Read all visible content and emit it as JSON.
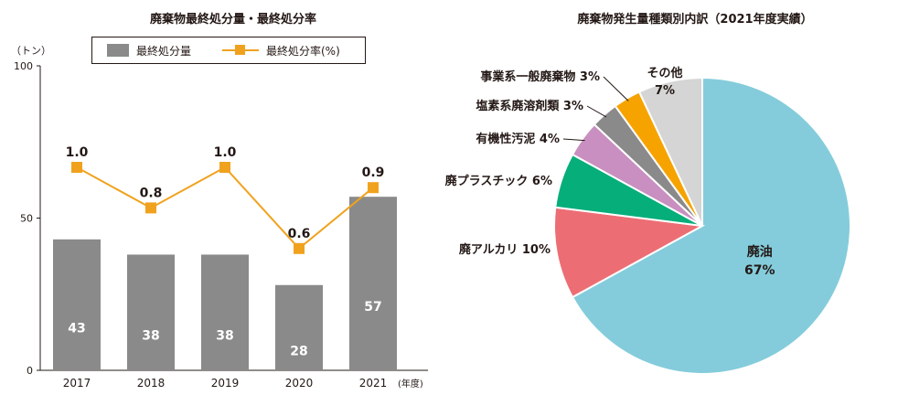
{
  "chart_data": [
    {
      "type": "bar",
      "title": "廃棄物最終処分量・最終処分率",
      "unit_label": "（トン）",
      "x_unit_label": "(年度)",
      "categories": [
        "2017",
        "2018",
        "2019",
        "2020",
        "2021"
      ],
      "ylim": [
        0,
        100
      ],
      "yticks": [
        "0",
        "50",
        "100"
      ],
      "series": [
        {
          "name": "最終処分量",
          "type": "bar",
          "color": "#8a8a8a",
          "values": [
            43,
            38,
            38,
            28,
            57
          ],
          "labels": [
            "43",
            "38",
            "38",
            "28",
            "57"
          ]
        },
        {
          "name": "最終処分率(%)",
          "type": "line",
          "color": "#f0a21e",
          "values": [
            1.0,
            0.8,
            1.0,
            0.6,
            0.9
          ],
          "labels": [
            "1.0",
            "0.8",
            "1.0",
            "0.6",
            "0.9"
          ]
        }
      ],
      "legend": "top"
    },
    {
      "type": "pie",
      "title": "廃棄物発生量種類別内訳（2021年度実績）",
      "slices": [
        {
          "label": "廃油",
          "percent": "67%",
          "value": 67,
          "color": "#84ccdb"
        },
        {
          "label": "廃アルカリ 10%",
          "value": 10,
          "color": "#ec6e74"
        },
        {
          "label": "廃プラスチック 6%",
          "value": 6,
          "color": "#06ae7a"
        },
        {
          "label": "有機性汚泥 4%",
          "value": 4,
          "color": "#c88fc0"
        },
        {
          "label": "塩素系廃溶剤類 3%",
          "value": 3,
          "color": "#8a8a8a"
        },
        {
          "label": "事業系一般廃棄物 3%",
          "value": 3,
          "color": "#f6a300"
        },
        {
          "label": "その他",
          "percent": "7%",
          "value": 7,
          "color": "#d5d5d5"
        }
      ]
    }
  ]
}
